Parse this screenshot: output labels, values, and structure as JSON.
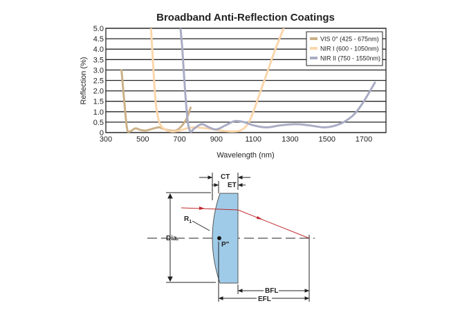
{
  "chart_data": {
    "type": "line",
    "title": "Broadband Anti-Reflection Coatings",
    "xlabel": "Wavelength (nm)",
    "ylabel": "Reflection (%)",
    "xlim": [
      300,
      1820
    ],
    "ylim": [
      0,
      5.0
    ],
    "xticks": [
      "300",
      "500",
      "700",
      "900",
      "1100",
      "1300",
      "1500",
      "1700"
    ],
    "yticks": [
      "0",
      "0.5",
      "1.0",
      "1.5",
      "2.0",
      "2.5",
      "3.0",
      "3.5",
      "4.0",
      "4.5",
      "5.0"
    ],
    "grid": "horizontal",
    "legend_position": "top-right",
    "series": [
      {
        "name": "VIS 0° (425 - 675nm)",
        "color": "#cbb188",
        "x": [
          385,
          400,
          415,
          430,
          460,
          490,
          520,
          560,
          590,
          620,
          650,
          680,
          710,
          740,
          760
        ],
        "y": [
          3.0,
          1.5,
          0.2,
          0.05,
          0.2,
          0.12,
          0.1,
          0.2,
          0.25,
          0.15,
          0.1,
          0.1,
          0.3,
          0.7,
          1.2
        ]
      },
      {
        "name": "NIR I (600 - 1050nm)",
        "color": "#fbd6ab",
        "x": [
          545,
          555,
          570,
          590,
          620,
          660,
          700,
          740,
          780,
          850,
          920,
          980,
          1030,
          1070,
          1100,
          1140,
          1180,
          1220,
          1265
        ],
        "y": [
          5.0,
          3.5,
          1.5,
          0.5,
          0.15,
          0.05,
          0.1,
          0.2,
          0.25,
          0.2,
          0.1,
          0.05,
          0.1,
          0.4,
          1.0,
          2.0,
          3.0,
          4.0,
          5.0
        ]
      },
      {
        "name": "NIR II (750 - 1550nm)",
        "color": "#a9acc4",
        "x": [
          705,
          715,
          730,
          745,
          760,
          780,
          820,
          860,
          900,
          950,
          1000,
          1050,
          1100,
          1170,
          1250,
          1330,
          1400,
          1480,
          1530,
          1590,
          1650,
          1700,
          1760
        ],
        "y": [
          5.0,
          4.0,
          2.0,
          0.5,
          0.05,
          0.2,
          0.4,
          0.25,
          0.15,
          0.35,
          0.55,
          0.5,
          0.35,
          0.25,
          0.35,
          0.4,
          0.35,
          0.25,
          0.3,
          0.5,
          0.9,
          1.5,
          2.4
        ]
      }
    ]
  },
  "diagram": {
    "ct": "CT",
    "et": "ET",
    "r1": "R",
    "r1_sub": "1",
    "dia": "Dia.",
    "p": "P\"",
    "bfl": "BFL",
    "efl": "EFL",
    "lens_color": "#9fcbe8",
    "ray_color": "#c0282d"
  }
}
